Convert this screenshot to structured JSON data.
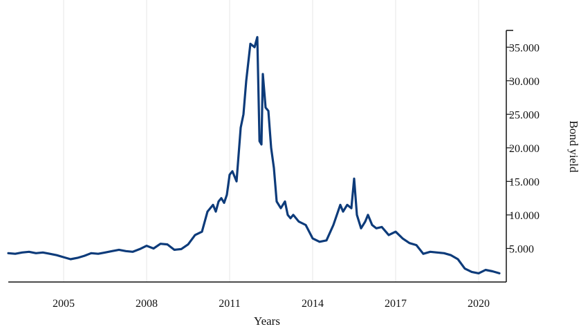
{
  "chart_data": {
    "type": "line",
    "title": "",
    "xlabel": "Years",
    "ylabel": "Bond yield",
    "xlim": [
      2003.0,
      2021.0
    ],
    "ylim": [
      0,
      37.5
    ],
    "x_ticks": [
      2005,
      2008,
      2011,
      2014,
      2017,
      2020
    ],
    "y_ticks": [
      5,
      10,
      15,
      20,
      25,
      30,
      35
    ],
    "y_tick_labels": [
      "5.000",
      "10.000",
      "15.000",
      "20.000",
      "25.000",
      "30.000",
      "35.000"
    ],
    "y_axis_side": "right",
    "grid": "vertical",
    "legend": "none",
    "line_color": "#0d3b7a",
    "series": [
      {
        "x": [
          2003.0,
          2003.25,
          2003.5,
          2003.75,
          2004.0,
          2004.25,
          2004.5,
          2004.75,
          2005.0,
          2005.25,
          2005.5,
          2005.75,
          2006.0,
          2006.25,
          2006.5,
          2006.75,
          2007.0,
          2007.25,
          2007.5,
          2007.75,
          2008.0,
          2008.25,
          2008.5,
          2008.75,
          2009.0,
          2009.25,
          2009.5,
          2009.75,
          2010.0,
          2010.2,
          2010.4,
          2010.5,
          2010.6,
          2010.7,
          2010.8,
          2010.9,
          2011.0,
          2011.1,
          2011.25,
          2011.4,
          2011.5,
          2011.6,
          2011.75,
          2011.9,
          2012.0,
          2012.08,
          2012.15,
          2012.2,
          2012.3,
          2012.4,
          2012.5,
          2012.6,
          2012.7,
          2012.85,
          2013.0,
          2013.1,
          2013.2,
          2013.3,
          2013.5,
          2013.75,
          2014.0,
          2014.25,
          2014.5,
          2014.75,
          2015.0,
          2015.1,
          2015.25,
          2015.4,
          2015.5,
          2015.6,
          2015.75,
          2015.9,
          2016.0,
          2016.15,
          2016.3,
          2016.5,
          2016.75,
          2017.0,
          2017.25,
          2017.5,
          2017.75,
          2018.0,
          2018.25,
          2018.5,
          2018.75,
          2019.0,
          2019.25,
          2019.5,
          2019.75,
          2020.0,
          2020.25,
          2020.5,
          2020.75
        ],
        "y": [
          4.3,
          4.2,
          4.4,
          4.5,
          4.3,
          4.4,
          4.2,
          4.0,
          3.7,
          3.4,
          3.6,
          3.9,
          4.3,
          4.2,
          4.4,
          4.6,
          4.8,
          4.6,
          4.5,
          4.9,
          5.4,
          5.0,
          5.7,
          5.6,
          4.8,
          4.9,
          5.6,
          7.0,
          7.5,
          10.5,
          11.5,
          10.5,
          12.0,
          12.5,
          11.8,
          13.0,
          16.0,
          16.5,
          15.0,
          23.0,
          25.0,
          30.0,
          35.5,
          35.0,
          36.5,
          21.0,
          20.5,
          31.0,
          26.0,
          25.5,
          20.0,
          17.0,
          12.0,
          11.0,
          12.0,
          10.0,
          9.5,
          10.0,
          9.0,
          8.5,
          6.5,
          6.0,
          6.2,
          8.5,
          11.5,
          10.5,
          11.5,
          11.0,
          15.4,
          10.0,
          8.0,
          9.0,
          10.0,
          8.5,
          8.0,
          8.2,
          7.0,
          7.5,
          6.5,
          5.8,
          5.5,
          4.2,
          4.5,
          4.4,
          4.3,
          4.0,
          3.4,
          2.0,
          1.5,
          1.3,
          1.8,
          1.6,
          1.3
        ]
      }
    ]
  }
}
